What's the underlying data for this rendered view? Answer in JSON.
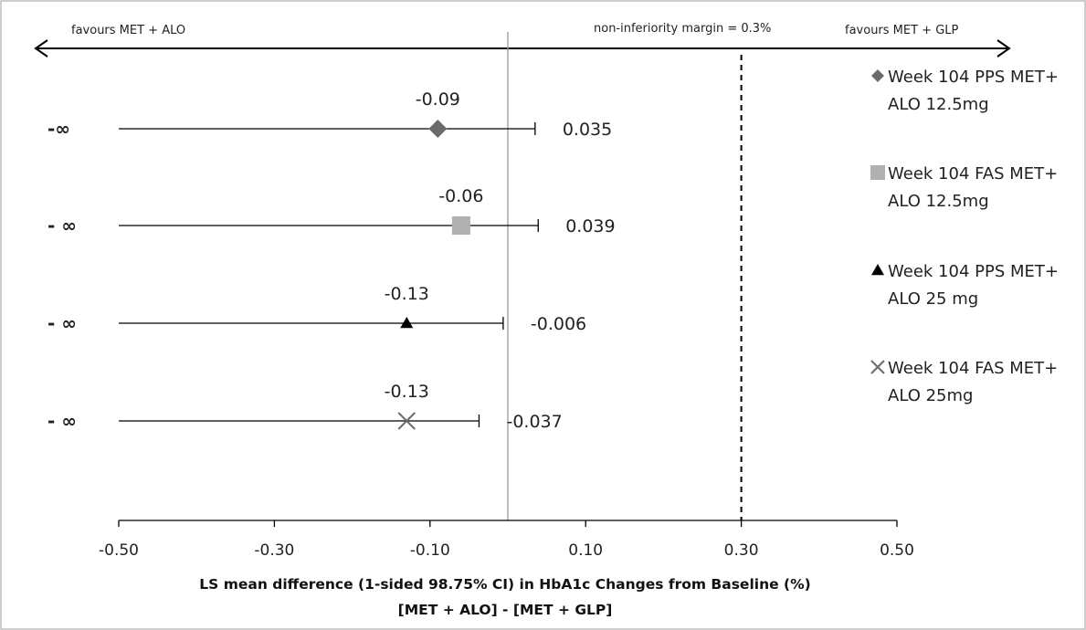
{
  "chart_data": {
    "type": "scatter",
    "subtype": "forest-plot",
    "xlabel_line1": "LS mean difference (1-sided 98.75% CI) in HbA1c Changes from Baseline (%)",
    "xlabel_line2": "[MET + ALO] - [MET + GLP]",
    "xlim": [
      -0.5,
      0.5
    ],
    "xticks": [
      "-0.50",
      "-0.30",
      "-0.10",
      "0.10",
      "0.30",
      "0.50"
    ],
    "xtick_values": [
      -0.5,
      -0.3,
      -0.1,
      0.1,
      0.3,
      0.5
    ],
    "zero_line": 0,
    "margin_line": {
      "value": 0.3,
      "label": "non-inferiority margin = 0.3%",
      "style": "dashed"
    },
    "direction_left": "favours MET + ALO",
    "direction_right": "favours MET + GLP",
    "lower_bound_label": "-∞",
    "legend_position": "right",
    "series": [
      {
        "name_line1": "Week 104 PPS MET+",
        "name_line2": "ALO 12.5mg",
        "marker": "diamond",
        "color": "#6b6b6b",
        "estimate": -0.09,
        "estimate_label": "-0.09",
        "upper": 0.035,
        "upper_label": "0.035",
        "inf_label": "-∞"
      },
      {
        "name_line1": "Week 104 FAS MET+",
        "name_line2": "ALO 12.5mg",
        "marker": "square",
        "color": "#b0b0b0",
        "estimate": -0.06,
        "estimate_label": "-0.06",
        "upper": 0.039,
        "upper_label": "0.039",
        "inf_label": "- ∞"
      },
      {
        "name_line1": "Week 104 PPS MET+",
        "name_line2": "ALO 25 mg",
        "marker": "triangle",
        "color": "#000000",
        "estimate": -0.13,
        "estimate_label": "-0.13",
        "upper": -0.006,
        "upper_label": "-0.006",
        "inf_label": "- ∞"
      },
      {
        "name_line1": "Week 104 FAS MET+",
        "name_line2": "ALO 25mg",
        "marker": "x",
        "color": "#6b6b6b",
        "estimate": -0.13,
        "estimate_label": "-0.13",
        "upper": -0.037,
        "upper_label": "-0.037",
        "inf_label": "- ∞"
      }
    ]
  }
}
